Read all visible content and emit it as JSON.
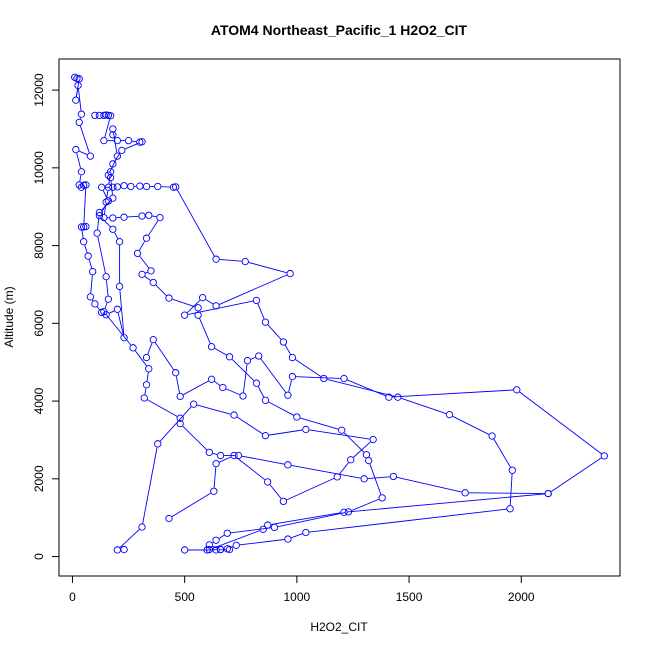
{
  "chart_data": {
    "type": "line",
    "title": "ATOM4 Northeast_Pacific_1 H2O2_CIT",
    "xlabel": "H2O2_CIT",
    "ylabel": "Altitude (m)",
    "xlim": [
      -60,
      2440
    ],
    "ylim": [
      -500,
      12800
    ],
    "x_ticks": [
      0,
      500,
      1000,
      1500,
      2000
    ],
    "y_ticks": [
      0,
      2000,
      4000,
      6000,
      8000,
      10000,
      12000
    ],
    "grid": false,
    "marker": "open-circle",
    "series_color": "#0000ff",
    "series": [
      {
        "values": [
          [
            10,
            12330
          ],
          [
            20,
            12300
          ],
          [
            30,
            12290
          ],
          [
            15,
            11740
          ],
          [
            25,
            12120
          ],
          [
            40,
            11380
          ],
          [
            30,
            11170
          ],
          [
            80,
            10300
          ],
          [
            15,
            10470
          ],
          [
            40,
            9900
          ],
          [
            30,
            9560
          ],
          [
            40,
            9500
          ],
          [
            50,
            9550
          ],
          [
            60,
            9560
          ],
          [
            50,
            8480
          ],
          [
            60,
            8490
          ],
          [
            40,
            8480
          ],
          [
            50,
            8100
          ],
          [
            70,
            7730
          ],
          [
            90,
            7330
          ],
          [
            80,
            6680
          ],
          [
            100,
            6500
          ],
          [
            130,
            6280
          ],
          [
            150,
            6220
          ],
          [
            200,
            6360
          ],
          [
            230,
            5630
          ],
          [
            210,
            6950
          ],
          [
            210,
            8100
          ],
          [
            180,
            8420
          ],
          [
            120,
            8770
          ],
          [
            160,
            9150
          ],
          [
            130,
            9500
          ],
          [
            180,
            9500
          ],
          [
            200,
            9510
          ],
          [
            230,
            9540
          ],
          [
            260,
            9520
          ],
          [
            300,
            9530
          ],
          [
            330,
            9520
          ],
          [
            380,
            9520
          ],
          [
            450,
            9500
          ],
          [
            460,
            9510
          ],
          [
            640,
            7650
          ],
          [
            770,
            7590
          ],
          [
            970,
            7280
          ],
          [
            640,
            6450
          ],
          [
            580,
            6660
          ],
          [
            500,
            6210
          ],
          [
            820,
            6590
          ],
          [
            860,
            6030
          ],
          [
            940,
            5520
          ],
          [
            980,
            5120
          ],
          [
            1120,
            4580
          ],
          [
            1450,
            4100
          ],
          [
            1680,
            3650
          ],
          [
            1870,
            3100
          ],
          [
            1960,
            2220
          ],
          [
            1950,
            1230
          ],
          [
            1040,
            620
          ],
          [
            960,
            450
          ],
          [
            730,
            290
          ],
          [
            690,
            200
          ],
          [
            660,
            180
          ],
          [
            600,
            170
          ],
          [
            500,
            170
          ],
          [
            640,
            170
          ],
          [
            700,
            180
          ]
        ]
      },
      {
        "values": [
          [
            100,
            11350
          ],
          [
            120,
            11350
          ],
          [
            140,
            11350
          ],
          [
            150,
            11360
          ],
          [
            160,
            11350
          ],
          [
            170,
            11340
          ],
          [
            140,
            10700
          ],
          [
            200,
            10700
          ],
          [
            250,
            10700
          ],
          [
            300,
            10660
          ],
          [
            310,
            10670
          ],
          [
            220,
            10450
          ],
          [
            180,
            10100
          ],
          [
            170,
            9900
          ],
          [
            160,
            9500
          ],
          [
            150,
            9120
          ],
          [
            140,
            8720
          ],
          [
            180,
            8710
          ],
          [
            230,
            8730
          ],
          [
            310,
            8760
          ],
          [
            340,
            8780
          ],
          [
            390,
            8720
          ],
          [
            330,
            8190
          ],
          [
            290,
            7800
          ],
          [
            350,
            7350
          ],
          [
            310,
            7260
          ],
          [
            360,
            7050
          ],
          [
            430,
            6650
          ],
          [
            560,
            6400
          ],
          [
            560,
            6210
          ],
          [
            620,
            5400
          ],
          [
            700,
            5140
          ],
          [
            820,
            4460
          ],
          [
            860,
            4020
          ],
          [
            1000,
            3590
          ],
          [
            1200,
            3250
          ],
          [
            1310,
            2620
          ],
          [
            1320,
            2470
          ],
          [
            1380,
            1510
          ],
          [
            1230,
            1150
          ],
          [
            900,
            750
          ],
          [
            690,
            600
          ],
          [
            640,
            420
          ],
          [
            610,
            300
          ],
          [
            660,
            180
          ]
        ]
      },
      {
        "values": [
          [
            180,
            10850
          ],
          [
            180,
            11000
          ],
          [
            200,
            10300
          ],
          [
            160,
            9810
          ],
          [
            170,
            9750
          ],
          [
            180,
            9220
          ],
          [
            120,
            8850
          ],
          [
            110,
            8320
          ],
          [
            150,
            7200
          ],
          [
            160,
            6620
          ],
          [
            140,
            6300
          ],
          [
            270,
            5370
          ],
          [
            340,
            4830
          ],
          [
            330,
            4420
          ],
          [
            320,
            4080
          ],
          [
            480,
            3560
          ],
          [
            480,
            3420
          ],
          [
            610,
            2680
          ],
          [
            660,
            2600
          ],
          [
            740,
            2600
          ],
          [
            960,
            2360
          ],
          [
            1300,
            2000
          ],
          [
            1430,
            2060
          ],
          [
            1750,
            1640
          ],
          [
            2120,
            1620
          ]
        ]
      },
      {
        "values": [
          [
            330,
            5120
          ],
          [
            360,
            5580
          ],
          [
            460,
            4730
          ],
          [
            480,
            4120
          ],
          [
            620,
            4560
          ],
          [
            670,
            4350
          ],
          [
            760,
            4130
          ],
          [
            780,
            5040
          ],
          [
            830,
            5160
          ],
          [
            960,
            4150
          ],
          [
            980,
            4630
          ],
          [
            1210,
            4580
          ],
          [
            1410,
            4100
          ],
          [
            1980,
            4290
          ],
          [
            2370,
            2590
          ],
          [
            2120,
            1620
          ],
          [
            1210,
            1140
          ],
          [
            870,
            810
          ],
          [
            850,
            700
          ],
          [
            610,
            180
          ]
        ]
      },
      {
        "values": [
          [
            430,
            980
          ],
          [
            630,
            1680
          ],
          [
            640,
            2390
          ],
          [
            720,
            2600
          ],
          [
            870,
            1920
          ],
          [
            940,
            1420
          ],
          [
            1180,
            2050
          ],
          [
            1240,
            2490
          ],
          [
            1340,
            3010
          ],
          [
            1040,
            3270
          ],
          [
            860,
            3110
          ],
          [
            720,
            3640
          ],
          [
            540,
            3920
          ],
          [
            380,
            2900
          ],
          [
            310,
            760
          ],
          [
            200,
            170
          ],
          [
            230,
            180
          ]
        ]
      }
    ]
  }
}
